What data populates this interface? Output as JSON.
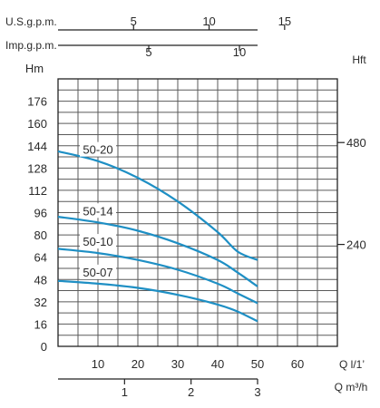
{
  "chart_data": {
    "type": "line",
    "title": "",
    "axes": {
      "left": {
        "label": "Hm",
        "ylim": [
          0,
          192
        ],
        "ticks": [
          0,
          16,
          32,
          48,
          64,
          80,
          96,
          112,
          128,
          144,
          160,
          176
        ]
      },
      "right": {
        "label": "Hft",
        "ticks": [
          240,
          480
        ]
      },
      "top_usgpm": {
        "label": "U.S.g.p.m.",
        "ticks": [
          5,
          10,
          15
        ]
      },
      "top_impgpm": {
        "label": "Imp.g.p.m.",
        "ticks": [
          5,
          10
        ]
      },
      "bottom_lmin": {
        "label": "Q l/1’",
        "xlim": [
          0,
          70
        ],
        "ticks": [
          10,
          20,
          30,
          40,
          50,
          60
        ]
      },
      "bottom_m3h": {
        "label": "Q m³/h",
        "ticks": [
          1,
          2,
          3
        ]
      }
    },
    "grid": true,
    "series": [
      {
        "name": "50-20",
        "x": [
          0,
          10,
          20,
          30,
          40,
          45,
          50
        ],
        "y": [
          140,
          133,
          121,
          104,
          82,
          68,
          62
        ]
      },
      {
        "name": "50-14",
        "x": [
          0,
          10,
          20,
          30,
          40,
          45,
          50
        ],
        "y": [
          93,
          89,
          83,
          74,
          62,
          53,
          43
        ]
      },
      {
        "name": "50-10",
        "x": [
          0,
          10,
          20,
          30,
          40,
          45,
          50
        ],
        "y": [
          70,
          67,
          62,
          55,
          45,
          38,
          31
        ]
      },
      {
        "name": "50-07",
        "x": [
          0,
          10,
          20,
          30,
          40,
          45,
          50
        ],
        "y": [
          47,
          45,
          42,
          37,
          30,
          25,
          18
        ]
      }
    ],
    "colors": {
      "curve": "#1e8fc4",
      "grid": "#5a5a5a",
      "text": "#2a2a2a"
    }
  }
}
